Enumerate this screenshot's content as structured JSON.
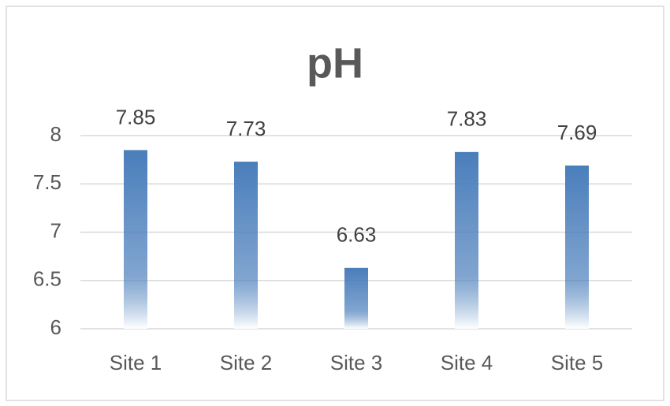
{
  "chart_data": {
    "type": "bar",
    "title": "pH",
    "categories": [
      "Site 1",
      "Site 2",
      "Site 3",
      "Site 4",
      "Site 5"
    ],
    "values": [
      7.85,
      7.73,
      6.63,
      7.83,
      7.69
    ],
    "color": "#4a7ebb",
    "ylim": [
      6,
      8
    ],
    "yticks": [
      6,
      6.5,
      7,
      7.5,
      8
    ],
    "grid": true
  }
}
